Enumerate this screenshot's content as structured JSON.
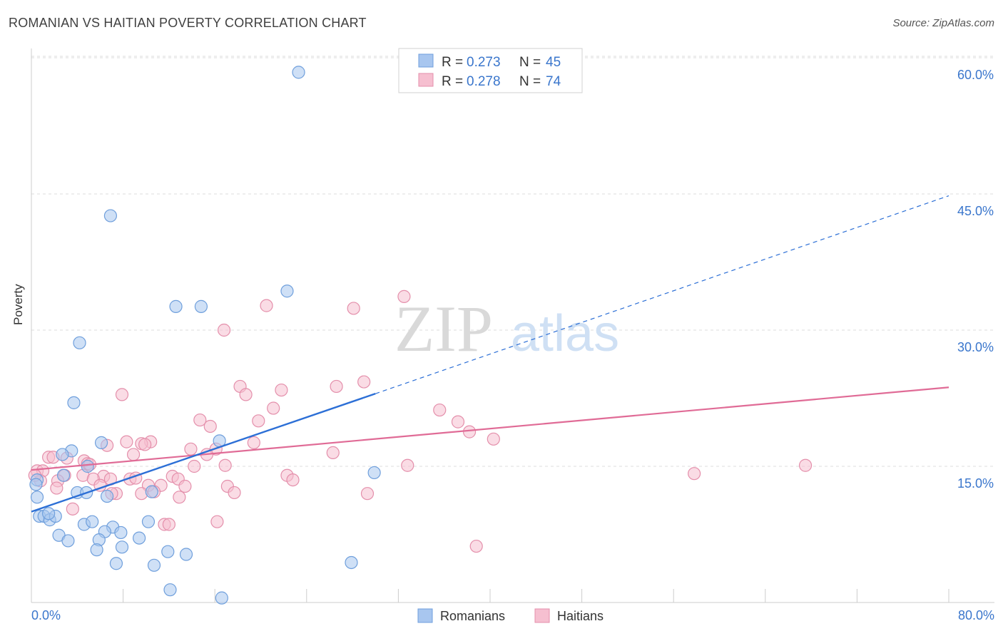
{
  "header": {
    "title": "ROMANIAN VS HAITIAN POVERTY CORRELATION CHART",
    "source": "Source: ZipAtlas.com"
  },
  "watermark": {
    "zip": "ZIP",
    "atlas": "atlas"
  },
  "colors": {
    "romanian_fill": "#a8c6ef",
    "romanian_stroke": "#6f9fdc",
    "romanian_line": "#2c6fd6",
    "haitian_fill": "#f6bfd0",
    "haitian_stroke": "#e48fab",
    "haitian_line": "#e06b96",
    "axis_text": "#3a76cc",
    "grid": "#dddddd"
  },
  "legend": {
    "rows": [
      {
        "r_label": "R =",
        "r_value": "0.273",
        "n_label": "N =",
        "n_value": "45"
      },
      {
        "r_label": "R =",
        "r_value": "0.278",
        "n_label": "N =",
        "n_value": "74"
      }
    ],
    "bottom": [
      "Romanians",
      "Haitians"
    ]
  },
  "chart_data": {
    "type": "scatter",
    "title": "ROMANIAN VS HAITIAN POVERTY CORRELATION CHART",
    "xlabel": "",
    "ylabel": "Poverty",
    "xlim": [
      0,
      80
    ],
    "ylim": [
      0,
      62
    ],
    "x_tick_labels": [
      "0.0%",
      "80.0%"
    ],
    "y_ticks": [
      15,
      30,
      45,
      60
    ],
    "y_tick_labels": [
      "15.0%",
      "30.0%",
      "45.0%",
      "60.0%"
    ],
    "grid": true,
    "legend_position": "top-center",
    "series": [
      {
        "name": "Romanians",
        "r": 0.273,
        "n": 45,
        "trend": {
          "x": [
            0,
            30
          ],
          "y": [
            10.0,
            23.0
          ],
          "dashed_to": [
            80,
            44.8
          ]
        },
        "points": [
          [
            23.3,
            58.4
          ],
          [
            6.9,
            42.6
          ],
          [
            22.3,
            34.3
          ],
          [
            12.6,
            32.6
          ],
          [
            14.8,
            32.6
          ],
          [
            4.2,
            28.6
          ],
          [
            3.7,
            22.0
          ],
          [
            6.1,
            17.6
          ],
          [
            16.4,
            17.8
          ],
          [
            3.5,
            16.7
          ],
          [
            2.7,
            16.3
          ],
          [
            4.9,
            15.0
          ],
          [
            2.8,
            14.0
          ],
          [
            29.9,
            14.3
          ],
          [
            0.5,
            13.5
          ],
          [
            0.5,
            11.6
          ],
          [
            4.0,
            12.1
          ],
          [
            4.8,
            12.1
          ],
          [
            6.6,
            11.7
          ],
          [
            10.5,
            12.2
          ],
          [
            0.7,
            9.5
          ],
          [
            1.1,
            9.5
          ],
          [
            1.6,
            9.1
          ],
          [
            2.1,
            9.5
          ],
          [
            10.2,
            8.9
          ],
          [
            4.6,
            8.6
          ],
          [
            5.3,
            8.9
          ],
          [
            7.1,
            8.3
          ],
          [
            6.4,
            7.8
          ],
          [
            7.8,
            7.7
          ],
          [
            9.4,
            7.1
          ],
          [
            2.4,
            7.4
          ],
          [
            3.2,
            6.8
          ],
          [
            5.9,
            6.9
          ],
          [
            7.9,
            6.1
          ],
          [
            5.7,
            5.8
          ],
          [
            11.9,
            5.6
          ],
          [
            13.5,
            5.3
          ],
          [
            7.4,
            4.3
          ],
          [
            10.7,
            4.1
          ],
          [
            27.9,
            4.4
          ],
          [
            12.1,
            1.4
          ],
          [
            16.6,
            0.5
          ],
          [
            0.4,
            13.0
          ],
          [
            1.5,
            9.8
          ]
        ]
      },
      {
        "name": "Haitians",
        "r": 0.278,
        "n": 74,
        "trend": {
          "x": [
            0,
            80
          ],
          "y": [
            14.6,
            23.7
          ]
        },
        "points": [
          [
            32.5,
            33.7
          ],
          [
            20.5,
            32.7
          ],
          [
            28.1,
            32.4
          ],
          [
            16.8,
            30.0
          ],
          [
            29.0,
            24.3
          ],
          [
            18.2,
            23.8
          ],
          [
            26.6,
            23.8
          ],
          [
            21.8,
            23.4
          ],
          [
            18.7,
            22.9
          ],
          [
            7.9,
            22.9
          ],
          [
            21.1,
            21.4
          ],
          [
            35.6,
            21.2
          ],
          [
            14.7,
            20.1
          ],
          [
            19.8,
            20.0
          ],
          [
            37.2,
            19.9
          ],
          [
            15.6,
            19.4
          ],
          [
            38.2,
            18.8
          ],
          [
            40.3,
            18.0
          ],
          [
            8.3,
            17.7
          ],
          [
            10.4,
            17.7
          ],
          [
            9.6,
            17.5
          ],
          [
            9.9,
            17.4
          ],
          [
            6.6,
            17.3
          ],
          [
            19.4,
            17.6
          ],
          [
            13.9,
            16.9
          ],
          [
            16.1,
            16.9
          ],
          [
            8.9,
            16.3
          ],
          [
            15.3,
            16.3
          ],
          [
            26.3,
            16.5
          ],
          [
            1.5,
            16.0
          ],
          [
            1.9,
            16.0
          ],
          [
            3.1,
            15.9
          ],
          [
            4.6,
            15.6
          ],
          [
            4.9,
            15.3
          ],
          [
            16.9,
            15.1
          ],
          [
            14.2,
            15.0
          ],
          [
            32.8,
            15.1
          ],
          [
            0.5,
            14.5
          ],
          [
            1.0,
            14.5
          ],
          [
            2.9,
            14.0
          ],
          [
            4.5,
            14.0
          ],
          [
            6.3,
            13.9
          ],
          [
            12.3,
            13.9
          ],
          [
            12.8,
            13.6
          ],
          [
            5.4,
            13.6
          ],
          [
            6.9,
            13.6
          ],
          [
            8.6,
            13.6
          ],
          [
            22.3,
            14.0
          ],
          [
            22.8,
            13.5
          ],
          [
            0.8,
            13.4
          ],
          [
            2.3,
            13.4
          ],
          [
            6.0,
            12.9
          ],
          [
            10.2,
            12.9
          ],
          [
            11.3,
            12.9
          ],
          [
            13.4,
            12.8
          ],
          [
            17.1,
            12.8
          ],
          [
            2.2,
            12.6
          ],
          [
            7.4,
            12.0
          ],
          [
            9.6,
            12.0
          ],
          [
            7.0,
            12.0
          ],
          [
            10.7,
            12.2
          ],
          [
            17.7,
            12.1
          ],
          [
            29.3,
            12.0
          ],
          [
            12.9,
            11.6
          ],
          [
            3.6,
            10.3
          ],
          [
            16.2,
            8.9
          ],
          [
            11.6,
            8.6
          ],
          [
            12.0,
            8.6
          ],
          [
            38.8,
            6.2
          ],
          [
            57.8,
            14.2
          ],
          [
            67.5,
            15.1
          ],
          [
            0.3,
            14.0
          ],
          [
            5.1,
            15.2
          ],
          [
            9.1,
            13.7
          ]
        ]
      }
    ]
  }
}
